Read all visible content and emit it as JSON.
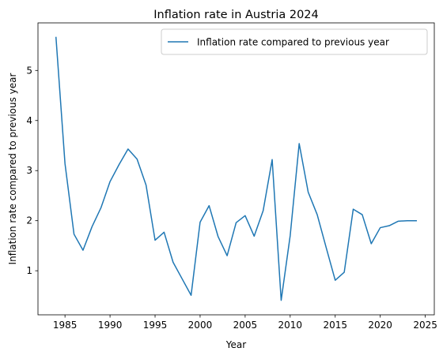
{
  "chart_data": {
    "type": "line",
    "title": "Inflation rate in Austria 2024",
    "xlabel": "Year",
    "ylabel": "Inflation rate compared to previous year",
    "xlim": [
      1982.0,
      2026.0
    ],
    "ylim": [
      0.12,
      5.95
    ],
    "xticks": [
      1985,
      1990,
      1995,
      2000,
      2005,
      2010,
      2015,
      2020,
      2025
    ],
    "yticks": [
      1,
      2,
      3,
      4,
      5
    ],
    "grid": false,
    "legend": {
      "placement": "top-right"
    },
    "series": [
      {
        "name": "Inflation rate compared to previous year",
        "color": "#1f77b4",
        "x": [
          1984,
          1985,
          1986,
          1987,
          1988,
          1989,
          1990,
          1991,
          1992,
          1993,
          1994,
          1995,
          1996,
          1997,
          1998,
          1999,
          2000,
          2001,
          2002,
          2003,
          2004,
          2005,
          2006,
          2007,
          2008,
          2009,
          2010,
          2011,
          2012,
          2013,
          2014,
          2015,
          2016,
          2017,
          2018,
          2019,
          2020,
          2021,
          2022,
          2023,
          2024
        ],
        "values": [
          5.66,
          3.14,
          1.73,
          1.41,
          1.88,
          2.26,
          2.78,
          3.12,
          3.43,
          3.23,
          2.71,
          1.61,
          1.77,
          1.17,
          0.84,
          0.51,
          1.97,
          2.3,
          1.68,
          1.3,
          1.96,
          2.1,
          1.69,
          2.2,
          3.22,
          0.41,
          1.7,
          3.54,
          2.57,
          2.12,
          1.46,
          0.81,
          0.97,
          2.23,
          2.12,
          1.54,
          1.86,
          1.9,
          1.99,
          2.0,
          2.0
        ]
      }
    ]
  }
}
